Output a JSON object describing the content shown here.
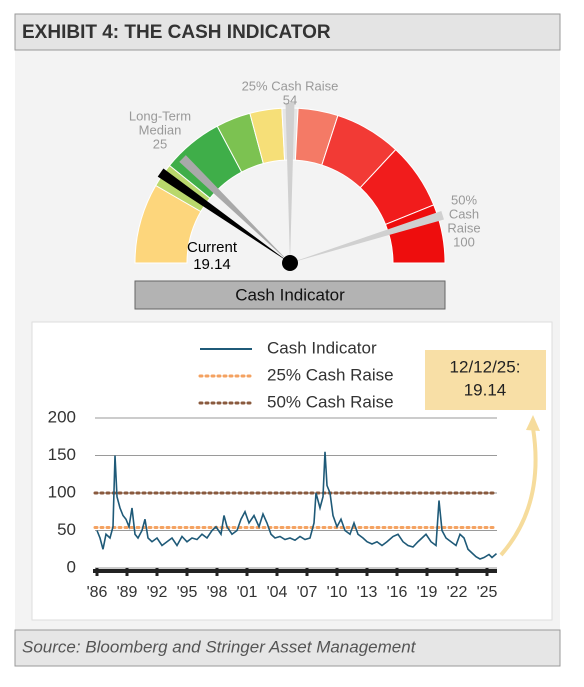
{
  "title": "EXHIBIT 4: THE CASH INDICATOR",
  "source": "Source: Bloomberg and Stringer Asset Management",
  "gauge": {
    "label": "Cash Indicator",
    "lim": [
      -3,
      111
    ],
    "current": {
      "label": "Current",
      "value": 19.14
    },
    "median": {
      "label": [
        "Long-Term",
        "Median"
      ],
      "value": 25
    },
    "raise25": {
      "label": [
        "25% Cash Raise"
      ],
      "value": 54
    },
    "raise50": {
      "label": [
        "50%",
        "Cash",
        "Raise"
      ],
      "value": 100
    }
  },
  "chart_data": {
    "type": "line",
    "x": [
      1986.0,
      1986.3,
      1986.6,
      1986.9,
      1987.3,
      1987.6,
      1987.8,
      1988.0,
      1988.3,
      1988.6,
      1988.9,
      1989.2,
      1989.5,
      1989.8,
      1990.1,
      1990.5,
      1990.8,
      1991.1,
      1991.5,
      1992.0,
      1992.5,
      1993.0,
      1993.5,
      1994.0,
      1994.5,
      1995.0,
      1995.5,
      1996.0,
      1996.5,
      1997.0,
      1997.5,
      1997.9,
      1998.4,
      1998.7,
      1999.0,
      1999.5,
      2000.0,
      2000.4,
      2000.8,
      2001.2,
      2001.7,
      2002.2,
      2002.6,
      2003.0,
      2003.4,
      2003.8,
      2004.3,
      2004.8,
      2005.3,
      2005.8,
      2006.3,
      2006.8,
      2007.3,
      2007.7,
      2007.9,
      2008.3,
      2008.6,
      2008.8,
      2009.0,
      2009.3,
      2009.6,
      2010.0,
      2010.4,
      2010.8,
      2011.3,
      2011.7,
      2012.1,
      2012.6,
      2013.0,
      2013.5,
      2014.0,
      2014.5,
      2015.0,
      2015.6,
      2016.1,
      2016.6,
      2017.1,
      2017.6,
      2018.1,
      2018.9,
      2019.4,
      2019.9,
      2020.2,
      2020.5,
      2020.9,
      2021.4,
      2021.9,
      2022.3,
      2022.7,
      2023.1,
      2023.5,
      2023.9,
      2024.3,
      2024.7,
      2025.2,
      2025.5,
      2025.95
    ],
    "series": [
      {
        "name": "Cash Indicator",
        "color": "#1f5a78",
        "values": [
          50,
          40,
          25,
          45,
          40,
          55,
          150,
          95,
          80,
          70,
          65,
          55,
          80,
          45,
          40,
          50,
          65,
          40,
          35,
          40,
          30,
          35,
          40,
          30,
          42,
          35,
          40,
          38,
          45,
          40,
          50,
          55,
          45,
          70,
          55,
          45,
          50,
          65,
          75,
          60,
          70,
          55,
          72,
          60,
          45,
          40,
          42,
          38,
          40,
          37,
          42,
          38,
          40,
          60,
          100,
          80,
          95,
          155,
          110,
          100,
          70,
          55,
          65,
          50,
          45,
          60,
          45,
          40,
          35,
          32,
          35,
          30,
          35,
          42,
          45,
          35,
          30,
          28,
          35,
          45,
          35,
          30,
          90,
          50,
          40,
          35,
          30,
          45,
          40,
          25,
          20,
          15,
          12,
          14,
          18,
          14,
          19.14
        ]
      }
    ],
    "hlines": [
      {
        "name": "25% Cash Raise",
        "color": "#f4a261",
        "value": 54
      },
      {
        "name": "50% Cash Raise",
        "color": "#8a5a3e",
        "value": 100
      }
    ],
    "xlim": [
      1985.8,
      2026.0
    ],
    "xticks": [
      {
        "value": 1986,
        "label": "'86"
      },
      {
        "value": 1989,
        "label": "'89"
      },
      {
        "value": 1992,
        "label": "'92"
      },
      {
        "value": 1995,
        "label": "'95"
      },
      {
        "value": 1998,
        "label": "'98"
      },
      {
        "value": 2001,
        "label": "'01"
      },
      {
        "value": 2004,
        "label": "'04"
      },
      {
        "value": 2007,
        "label": "'07"
      },
      {
        "value": 2010,
        "label": "'10"
      },
      {
        "value": 2013,
        "label": "'13"
      },
      {
        "value": 2016,
        "label": "'16"
      },
      {
        "value": 2019,
        "label": "'19"
      },
      {
        "value": 2022,
        "label": "'22"
      },
      {
        "value": 2025,
        "label": "'25"
      }
    ],
    "ylim": [
      0,
      200
    ],
    "yticks": [
      0,
      50,
      100,
      150,
      200
    ],
    "grid": true,
    "annotation": {
      "date": "12/12/25:",
      "value": 19.14
    }
  }
}
